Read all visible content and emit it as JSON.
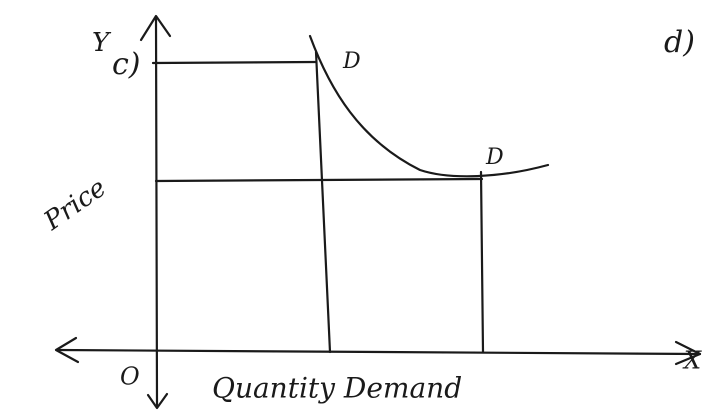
{
  "part_label": "c)",
  "y_axis_letter": "Y",
  "x_axis_letter": "X",
  "origin": "O",
  "y_axis_label": "Price",
  "x_axis_label": "Quantity Demand",
  "curve_labels": [
    "D",
    "D"
  ],
  "next_part_label": "d)"
}
